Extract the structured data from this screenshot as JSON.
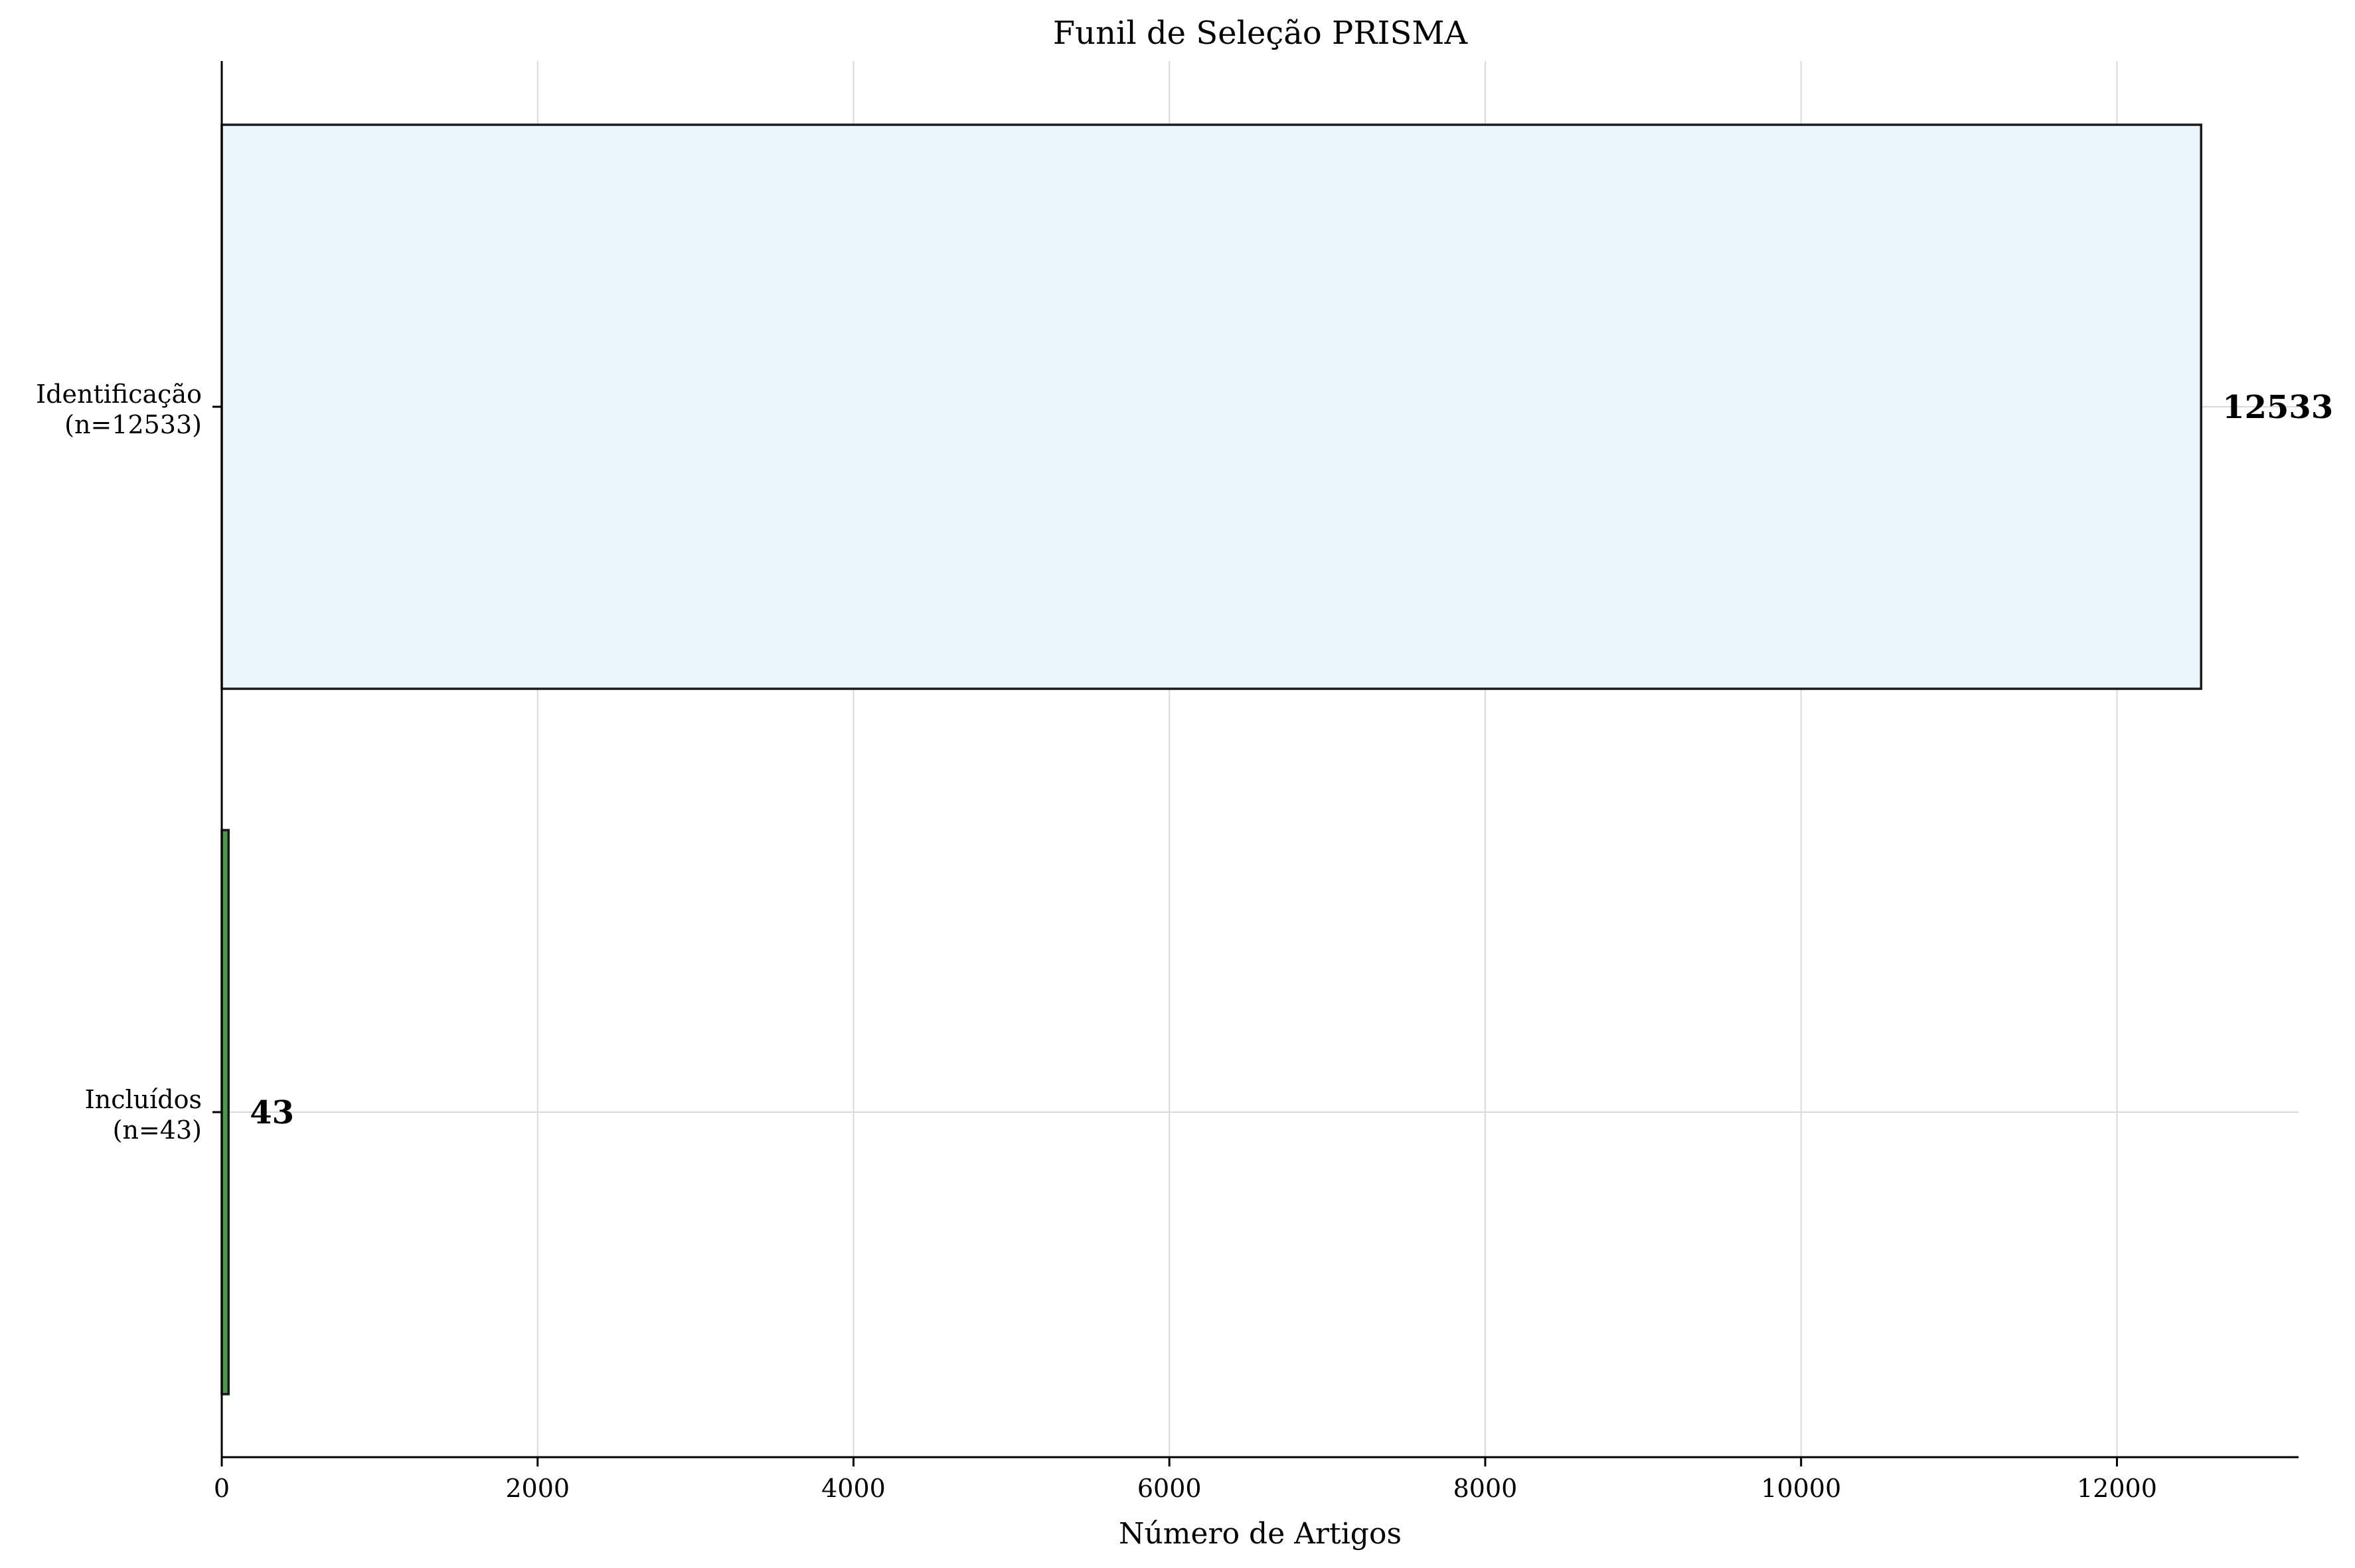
{
  "chart_data": {
    "type": "bar",
    "orientation": "horizontal",
    "title": "Funil de Seleção PRISMA",
    "xlabel": "Número de Artigos",
    "ylabel": "",
    "xlim": [
      0,
      13150
    ],
    "xticks": [
      0,
      2000,
      4000,
      6000,
      8000,
      10000,
      12000
    ],
    "grid": true,
    "categories": [
      {
        "line1": "Identificação",
        "line2": "(n=12533)"
      },
      {
        "line1": "Incluídos",
        "line2": "(n=43)"
      }
    ],
    "values": [
      12533,
      43
    ],
    "value_labels": [
      "12533",
      "43"
    ],
    "colors": [
      "#eaf6fc",
      "#4a9a4a"
    ]
  }
}
